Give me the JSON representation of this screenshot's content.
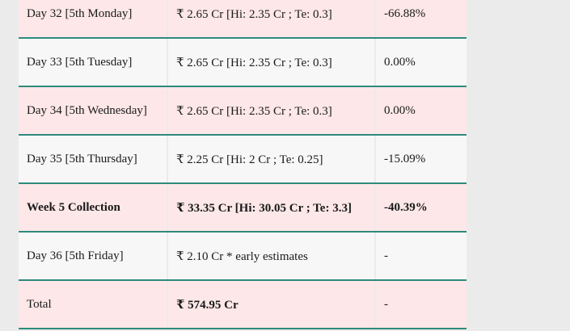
{
  "table": {
    "rows": [
      {
        "day": "Day 32 [5th Monday]",
        "collection": "₹ 2.65 Cr [Hi: 2.35 Cr ; Te: 0.3]",
        "change": "-66.88%",
        "style": "pink"
      },
      {
        "day": "Day 33 [5th Tuesday]",
        "collection": "₹ 2.65 Cr [Hi: 2.35 Cr ; Te: 0.3]",
        "change": "0.00%",
        "style": "white"
      },
      {
        "day": "Day 34 [5th Wednesday]",
        "collection": "₹ 2.65 Cr [Hi: 2.35 Cr ; Te: 0.3]",
        "change": "0.00%",
        "style": "pink"
      },
      {
        "day": "Day 35 [5th Thursday]",
        "collection": "₹ 2.25 Cr [Hi: 2 Cr ; Te: 0.25]",
        "change": "-15.09%",
        "style": "white"
      },
      {
        "day": "Week 5 Collection",
        "collection": "₹ 33.35 Cr [Hi: 30.05 Cr ; Te: 3.3]",
        "change": "-40.39%",
        "style": "pink bold"
      },
      {
        "day": "Day 36 [5th Friday]",
        "collection": "₹ 2.10 Cr * early estimates",
        "change": "-",
        "style": "white"
      },
      {
        "day": "Total",
        "collection": "₹ 574.95 Cr",
        "change": "-",
        "style": "pink total"
      }
    ]
  }
}
